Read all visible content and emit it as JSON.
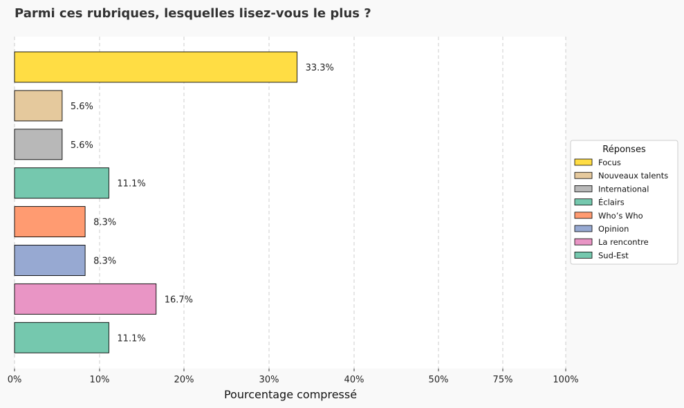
{
  "chart_data": {
    "type": "bar",
    "orientation": "horizontal",
    "title": "Parmi ces rubriques, lesquelles lisez-vous le plus ?",
    "xlabel": "Pourcentage compressé",
    "ylabel": "",
    "categories": [
      "Focus",
      "Nouveaux talents",
      "International",
      "Éclairs",
      "Who’s Who",
      "Opinion",
      "La rencontre",
      "Sud-Est"
    ],
    "values": [
      33.3,
      5.6,
      5.6,
      11.1,
      8.3,
      8.3,
      16.7,
      11.1
    ],
    "value_labels": [
      "33.3%",
      "5.6%",
      "5.6%",
      "11.1%",
      "8.3%",
      "8.3%",
      "16.7%",
      "11.1%"
    ],
    "colors": [
      "#ffdd44",
      "#e5c99d",
      "#b8b8b8",
      "#75c8ae",
      "#ff9b71",
      "#97a9d2",
      "#e995c5",
      "#75c8ae"
    ],
    "x_ticks": [
      0,
      10,
      20,
      30,
      40,
      50,
      75,
      100
    ],
    "x_tick_labels": [
      "0%",
      "10%",
      "20%",
      "30%",
      "40%",
      "50%",
      "75%",
      "100%"
    ],
    "xlim": [
      0,
      100
    ],
    "x_scale": "compressed",
    "grid": "vertical dashed",
    "legend": {
      "title": "Réponses",
      "placement": "right"
    }
  }
}
